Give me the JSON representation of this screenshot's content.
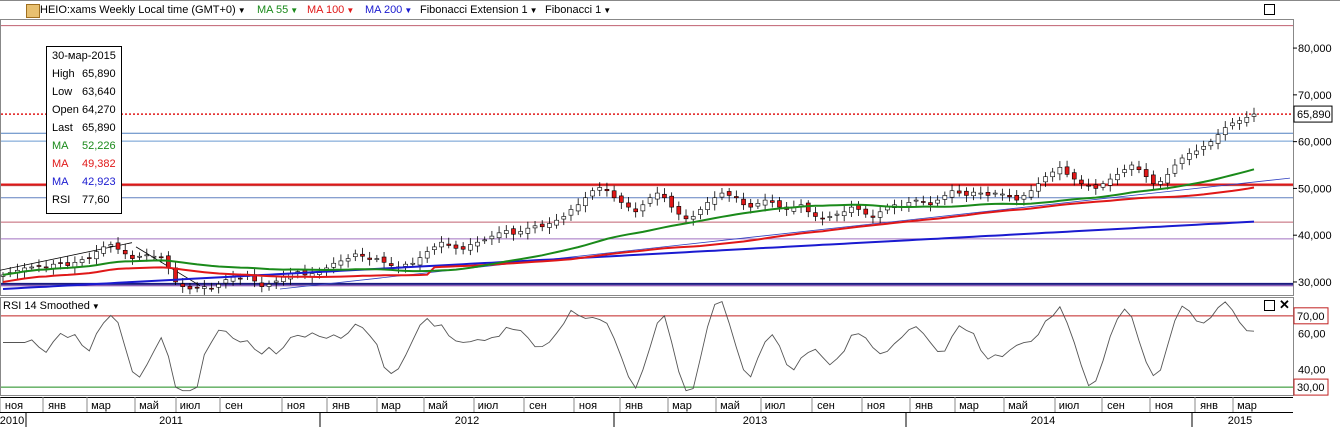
{
  "toolbar": {
    "symbol_label": "HEIO:xams Weekly Local time (GMT+0)",
    "ma55_label": "MA 55",
    "ma100_label": "MA 100",
    "ma200_label": "MA 200",
    "fib_ext_label": "Fibonacci Extension 1",
    "fib_label": "Fibonacci 1"
  },
  "legend": {
    "date": "30-мар-2015",
    "high_key": "High",
    "high_val": "65,890",
    "low_key": "Low",
    "low_val": "63,640",
    "open_key": "Open",
    "open_val": "64,270",
    "last_key": "Last",
    "last_val": "65,890",
    "ma1_key": "MA",
    "ma1_val": "52,226",
    "ma2_key": "MA",
    "ma2_val": "49,382",
    "ma3_key": "MA",
    "ma3_val": "42,923",
    "rsi_key": "RSI",
    "rsi_val": "77,60"
  },
  "rsi_panel": {
    "title": "RSI 14 Smoothed"
  },
  "colors": {
    "ma55": "#1a8a1a",
    "ma100": "#e01818",
    "ma200": "#1a1ad0",
    "up": "#ffffff",
    "down": "#e01818",
    "rsi": "#555555",
    "fib": "#b05060"
  },
  "chart_data": [
    {
      "type": "candlestick",
      "title": "HEIO:xams Weekly",
      "y_ticks": [
        "80,000",
        "70,000",
        "60,000",
        "50,000",
        "40,000",
        "30,000"
      ],
      "ylim": [
        27,
        86
      ],
      "last_price": "65,890",
      "x_month_labels": [
        "ноя",
        "янв",
        "мар",
        "май",
        "июл",
        "сен",
        "ноя",
        "янв",
        "мар",
        "май",
        "июл",
        "сен",
        "ноя",
        "янв",
        "мар",
        "май",
        "июл",
        "сен",
        "ноя",
        "янв",
        "мар",
        "май",
        "июл",
        "сен",
        "ноя",
        "янв",
        "мар"
      ],
      "x_year_labels": [
        "2010",
        "2011",
        "2012",
        "2013",
        "2014",
        "2015"
      ],
      "close_series": [
        31.5,
        32,
        32.5,
        33,
        33.2,
        33.5,
        33,
        33.8,
        34,
        33.5,
        34.2,
        34.8,
        35,
        36.5,
        37.5,
        38,
        37,
        36,
        35,
        35.5,
        35.8,
        35.5,
        35.2,
        33,
        30,
        29,
        28.5,
        28.8,
        29,
        28.6,
        29.5,
        30.5,
        31,
        30.8,
        31.5,
        30.2,
        29,
        29.5,
        30.2,
        31,
        31.8,
        32.2,
        31.5,
        31.8,
        32,
        33,
        34,
        34.5,
        35,
        36,
        35.5,
        34.8,
        35,
        34.2,
        33.5,
        33,
        33.8,
        34,
        35.2,
        36.5,
        37.5,
        38.5,
        37.8,
        37.2,
        37,
        38,
        38.5,
        39,
        39.8,
        40.5,
        41,
        40.2,
        40.8,
        41.5,
        42,
        41.8,
        42.5,
        43.2,
        44,
        45.5,
        46.5,
        48,
        49.5,
        50.2,
        49.5,
        48,
        47,
        46,
        45,
        46.5,
        48,
        49,
        48,
        46,
        44.5,
        43.5,
        44,
        45.5,
        47,
        48,
        49,
        48.5,
        48,
        46.5,
        46,
        46.8,
        47.5,
        47,
        46,
        45.5,
        46,
        46.5,
        45,
        44,
        43.5,
        44,
        44.5,
        45,
        46,
        45.5,
        44.5,
        43.8,
        45,
        46,
        46.5,
        46,
        47,
        47.5,
        47.2,
        46.5,
        47.5,
        48.5,
        49.5,
        49,
        48.5,
        49.2,
        49,
        48.5,
        49,
        48.8,
        48.2,
        47.5,
        48.5,
        49.5,
        51,
        52.5,
        53.5,
        54.5,
        53,
        52,
        51,
        50.5,
        50,
        51,
        52,
        53,
        54,
        55,
        54,
        52.5,
        51,
        51.5,
        53,
        55,
        56.5,
        57.5,
        58,
        59,
        60,
        61.5,
        63,
        64,
        64.5,
        65.2,
        65.89
      ],
      "ma55": {
        "label": "MA",
        "last": "52,226"
      },
      "ma100": {
        "label": "MA",
        "last": "49,382"
      },
      "ma200": {
        "label": "MA",
        "last": "42,923"
      }
    },
    {
      "type": "line",
      "title": "RSI 14 Smoothed",
      "y_ticks": [
        "70,00",
        "60,00",
        "40,00",
        "30,00"
      ],
      "ylim": [
        25,
        80
      ],
      "levels": [
        70,
        30
      ],
      "last": "77,60"
    }
  ]
}
